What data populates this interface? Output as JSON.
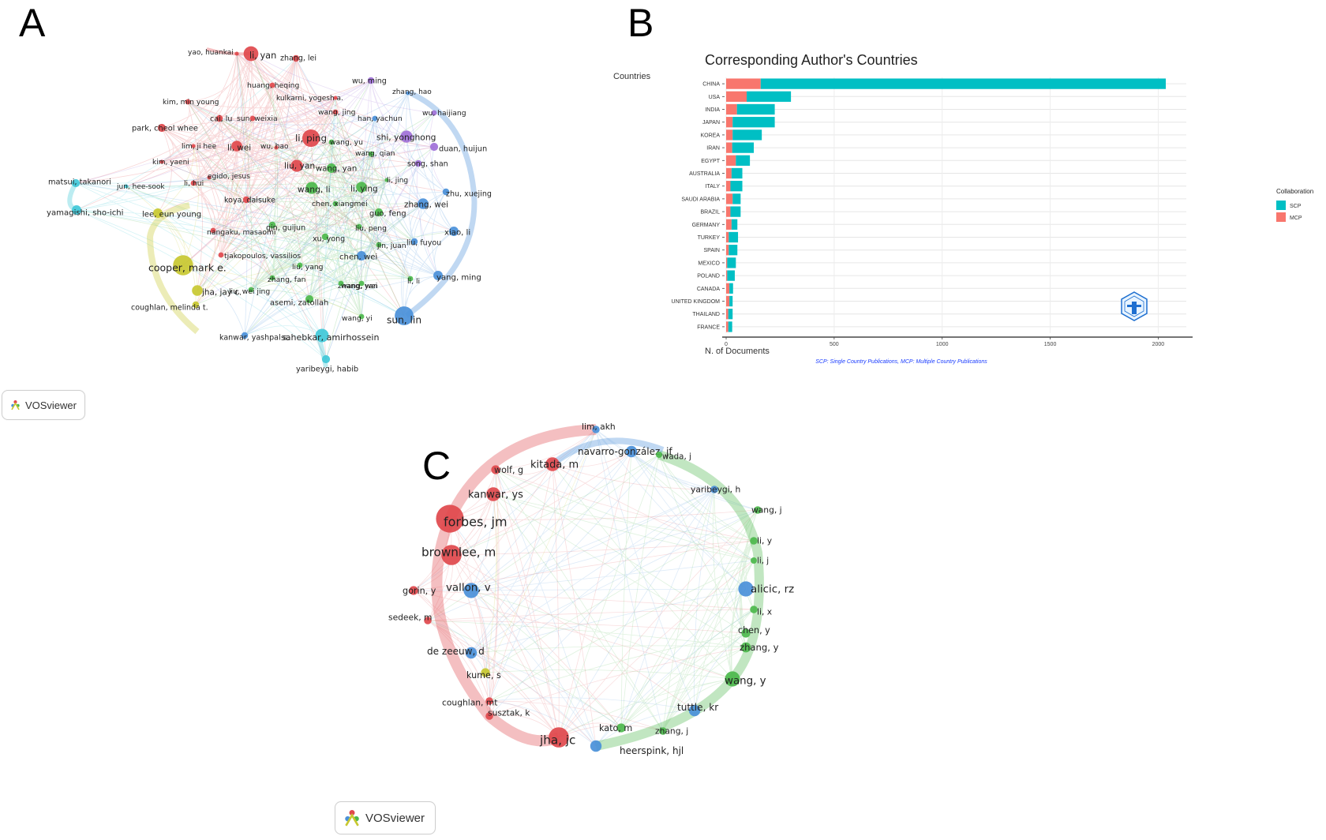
{
  "panels": {
    "a": {
      "letter": "A"
    },
    "b": {
      "letter": "B"
    },
    "c": {
      "letter": "C"
    }
  },
  "vosviewer_label": "VOSviewer",
  "colors": {
    "red": "#e0484c",
    "green": "#4cb84c",
    "blue": "#4a90d9",
    "yellow": "#c8c830",
    "purple": "#a070d8",
    "cyan": "#40c8d8",
    "scp": "#00BFC4",
    "mcp": "#F8766D"
  },
  "network_a_nodes": [
    {
      "label": "yao, huankai",
      "c": "red",
      "s": 3
    },
    {
      "label": "li, yan",
      "c": "red",
      "s": 11
    },
    {
      "label": "zhang, lei",
      "c": "red",
      "s": 5
    },
    {
      "label": "huang, heqing",
      "c": "red",
      "s": 4
    },
    {
      "label": "wu, ming",
      "c": "purple",
      "s": 5
    },
    {
      "label": "zhang, hao",
      "c": "blue",
      "s": 3
    },
    {
      "label": "kulkarni, yogesh a.",
      "c": "red",
      "s": 3
    },
    {
      "label": "kim, min young",
      "c": "red",
      "s": 4
    },
    {
      "label": "wang, jing",
      "c": "red",
      "s": 4
    },
    {
      "label": "wu, haijiang",
      "c": "purple",
      "s": 4
    },
    {
      "label": "cai, lu",
      "c": "red",
      "s": 5
    },
    {
      "label": "sun, weixia",
      "c": "red",
      "s": 4
    },
    {
      "label": "han, yachun",
      "c": "blue",
      "s": 4
    },
    {
      "label": "park, cheol whee",
      "c": "red",
      "s": 6
    },
    {
      "label": "li, ping",
      "c": "red",
      "s": 13
    },
    {
      "label": "shi, yonghong",
      "c": "purple",
      "s": 9
    },
    {
      "label": "lim, ji hee",
      "c": "red",
      "s": 3
    },
    {
      "label": "wang, yu",
      "c": "green",
      "s": 4
    },
    {
      "label": "li, wei",
      "c": "red",
      "s": 8
    },
    {
      "label": "wu, hao",
      "c": "red",
      "s": 3
    },
    {
      "label": "duan, huijun",
      "c": "purple",
      "s": 6
    },
    {
      "label": "wang, qian",
      "c": "green",
      "s": 4
    },
    {
      "label": "kim, yaeni",
      "c": "red",
      "s": 3
    },
    {
      "label": "liu, yan",
      "c": "red",
      "s": 9
    },
    {
      "label": "song, shan",
      "c": "purple",
      "s": 5
    },
    {
      "label": "egido, jesus",
      "c": "red",
      "s": 3
    },
    {
      "label": "wang, yan",
      "c": "green",
      "s": 7
    },
    {
      "label": "matsui, takanori",
      "c": "cyan",
      "s": 6
    },
    {
      "label": "jun, hee-sook",
      "c": "cyan",
      "s": 3
    },
    {
      "label": "li, jing",
      "c": "green",
      "s": 3
    },
    {
      "label": "li, hui",
      "c": "red",
      "s": 4
    },
    {
      "label": "wang, li",
      "c": "green",
      "s": 9
    },
    {
      "label": "li, ying",
      "c": "green",
      "s": 8
    },
    {
      "label": "zhu, xuejing",
      "c": "blue",
      "s": 5
    },
    {
      "label": "koya, daisuke",
      "c": "red",
      "s": 5
    },
    {
      "label": "chen, xiangmei",
      "c": "green",
      "s": 4
    },
    {
      "label": "zhang, wei",
      "c": "blue",
      "s": 8
    },
    {
      "label": "yamagishi, sho-ichi",
      "c": "cyan",
      "s": 7
    },
    {
      "label": "lee, eun young",
      "c": "yellow",
      "s": 7
    },
    {
      "label": "guo, feng",
      "c": "green",
      "s": 6
    },
    {
      "label": "qin, guijun",
      "c": "green",
      "s": 5
    },
    {
      "label": "nangaku, masaomi",
      "c": "red",
      "s": 4
    },
    {
      "label": "liu, peng",
      "c": "green",
      "s": 4
    },
    {
      "label": "xiao, li",
      "c": "blue",
      "s": 7
    },
    {
      "label": "xu, yong",
      "c": "green",
      "s": 5
    },
    {
      "label": "liu, fuyou",
      "c": "blue",
      "s": 5
    },
    {
      "label": "jin, juan",
      "c": "green",
      "s": 4
    },
    {
      "label": "cooper, mark e.",
      "c": "yellow",
      "s": 15
    },
    {
      "label": "tjakopoulos, vassilios",
      "c": "red",
      "s": 4
    },
    {
      "label": "chen, wei",
      "c": "blue",
      "s": 7
    },
    {
      "label": "liu, yang",
      "c": "green",
      "s": 4
    },
    {
      "label": "zhang, fan",
      "c": "green",
      "s": 4
    },
    {
      "label": "yang, ming",
      "c": "blue",
      "s": 7
    },
    {
      "label": "li, li",
      "c": "green",
      "s": 4
    },
    {
      "label": "zhang, yan",
      "c": "green",
      "s": 4
    },
    {
      "label": "wang, wei",
      "c": "green",
      "s": 4
    },
    {
      "label": "jha, jay c.",
      "c": "yellow",
      "s": 8
    },
    {
      "label": "liu, wei jing",
      "c": "green",
      "s": 4
    },
    {
      "label": "asemi, zatollah",
      "c": "green",
      "s": 6
    },
    {
      "label": "coughlan, melinda t.",
      "c": "yellow",
      "s": 5
    },
    {
      "label": "wang, yi",
      "c": "green",
      "s": 4
    },
    {
      "label": "sun, lin",
      "c": "blue",
      "s": 14
    },
    {
      "label": "kanwar, yashpal s.",
      "c": "blue",
      "s": 5
    },
    {
      "label": "sahebkar, amirhossein",
      "c": "cyan",
      "s": 10
    },
    {
      "label": "yaribeygi, habib",
      "c": "cyan",
      "s": 6
    }
  ],
  "network_c_nodes": [
    {
      "label": "lim, akh",
      "c": "blue",
      "s": 6
    },
    {
      "label": "navarro-gonzález, jf",
      "c": "blue",
      "s": 9
    },
    {
      "label": "wada, j",
      "c": "green",
      "s": 5
    },
    {
      "label": "kitada, m",
      "c": "red",
      "s": 11
    },
    {
      "label": "wolf, g",
      "c": "red",
      "s": 7
    },
    {
      "label": "yaribeygi, h",
      "c": "blue",
      "s": 6
    },
    {
      "label": "kanwar, ys",
      "c": "red",
      "s": 11
    },
    {
      "label": "wang, j",
      "c": "green",
      "s": 6
    },
    {
      "label": "forbes, jm",
      "c": "red",
      "s": 22
    },
    {
      "label": "li, y",
      "c": "green",
      "s": 6
    },
    {
      "label": "brownlee, m",
      "c": "red",
      "s": 16
    },
    {
      "label": "li, j",
      "c": "green",
      "s": 5
    },
    {
      "label": "gorin, y",
      "c": "red",
      "s": 7
    },
    {
      "label": "vallon, v",
      "c": "blue",
      "s": 12
    },
    {
      "label": "alicic, rz",
      "c": "blue",
      "s": 12
    },
    {
      "label": "li, x",
      "c": "green",
      "s": 6
    },
    {
      "label": "sedeek, m",
      "c": "red",
      "s": 6
    },
    {
      "label": "chen, y",
      "c": "green",
      "s": 7
    },
    {
      "label": "zhang, y",
      "c": "green",
      "s": 8
    },
    {
      "label": "de zeeuw, d",
      "c": "blue",
      "s": 9
    },
    {
      "label": "kume, s",
      "c": "yellow",
      "s": 7
    },
    {
      "label": "wang, y",
      "c": "green",
      "s": 12
    },
    {
      "label": "coughlan, mt",
      "c": "red",
      "s": 6
    },
    {
      "label": "tuttle, kr",
      "c": "blue",
      "s": 9
    },
    {
      "label": "susztak, k",
      "c": "red",
      "s": 6
    },
    {
      "label": "kato, m",
      "c": "green",
      "s": 7
    },
    {
      "label": "zhang, j",
      "c": "green",
      "s": 6
    },
    {
      "label": "jha, jc",
      "c": "red",
      "s": 16
    },
    {
      "label": "heerspink, hjl",
      "c": "blue",
      "s": 9
    }
  ],
  "chart_data": {
    "type": "bar",
    "orientation": "horizontal",
    "stacked": true,
    "title": "Corresponding Author's Countries",
    "ylabel": "Countries",
    "xlabel": "N. of Documents",
    "caption": "SCP: Single Country Publications, MCP: Multiple Country Publications",
    "xlim": [
      0,
      2130
    ],
    "xticks": [
      0,
      500,
      1000,
      1500,
      2000
    ],
    "legend_title": "Collaboration",
    "legend_position": "right",
    "categories": [
      "CHINA",
      "USA",
      "INDIA",
      "JAPAN",
      "KOREA",
      "IRAN",
      "EGYPT",
      "AUSTRALIA",
      "ITALY",
      "SAUDI ARABIA",
      "BRAZIL",
      "GERMANY",
      "TURKEY",
      "SPAIN",
      "MEXICO",
      "POLAND",
      "CANADA",
      "UNITED KINGDOM",
      "THAILAND",
      "FRANCE"
    ],
    "series": [
      {
        "name": "MCP",
        "values": [
          160,
          95,
          50,
          30,
          30,
          28,
          45,
          25,
          20,
          30,
          20,
          25,
          12,
          12,
          5,
          5,
          15,
          15,
          10,
          10
        ]
      },
      {
        "name": "SCP",
        "values": [
          1875,
          205,
          175,
          195,
          135,
          100,
          65,
          50,
          55,
          37,
          47,
          27,
          43,
          40,
          40,
          35,
          17,
          15,
          20,
          18
        ]
      }
    ]
  }
}
